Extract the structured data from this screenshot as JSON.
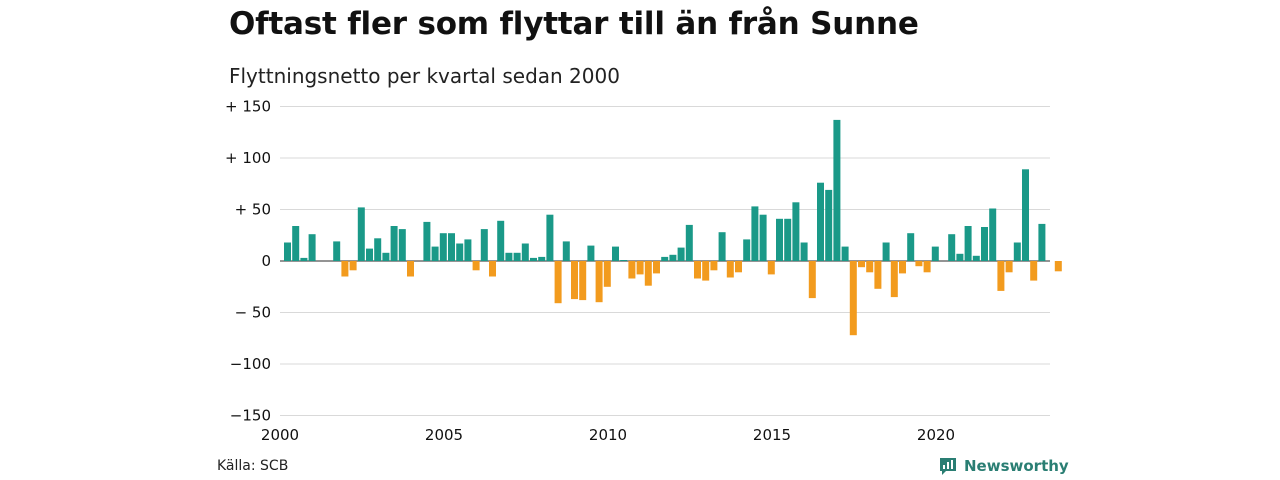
{
  "title": "Oftast fler som flyttar till än från Sunne",
  "subtitle": "Flyttningsnetto per kvartal sedan 2000",
  "source": "Källa: SCB",
  "brand": "Newsworthy",
  "colors": {
    "positive": "#1a9988",
    "negative": "#f29b1e",
    "grid": "#d9d9d9",
    "brand": "#2a7e73"
  },
  "chart_data": {
    "type": "bar",
    "ylim": [
      -150,
      150
    ],
    "yticks": [
      {
        "value": 150,
        "label": "+ 150"
      },
      {
        "value": 100,
        "label": "+ 100"
      },
      {
        "value": 50,
        "label": "+  50"
      },
      {
        "value": 0,
        "label": "0"
      },
      {
        "value": -50,
        "label": "− 50"
      },
      {
        "value": -100,
        "label": "−100"
      },
      {
        "value": -150,
        "label": "−150"
      }
    ],
    "xticks": [
      "2000",
      "2005",
      "2010",
      "2015",
      "2020"
    ],
    "start_year": 2000,
    "values": [
      18,
      34,
      3,
      26,
      0,
      0,
      19,
      -15,
      -9,
      52,
      12,
      22,
      8,
      34,
      31,
      -15,
      0,
      38,
      14,
      27,
      27,
      17,
      21,
      -9,
      31,
      -15,
      39,
      8,
      8,
      17,
      3,
      4,
      45,
      -41,
      19,
      -37,
      -38,
      15,
      -40,
      -25,
      14,
      1,
      -17,
      -13,
      -24,
      -12,
      4,
      6,
      13,
      35,
      -17,
      -19,
      -9,
      28,
      -16,
      -11,
      21,
      53,
      45,
      -13,
      41,
      41,
      57,
      18,
      -36,
      76,
      69,
      137,
      14,
      -72,
      -6,
      -11,
      -27,
      18,
      -35,
      -12,
      27,
      -5,
      -11,
      14,
      0,
      26,
      7,
      34,
      5,
      33,
      51,
      -29,
      -11,
      18,
      89,
      -19,
      36,
      0,
      -10
    ]
  }
}
